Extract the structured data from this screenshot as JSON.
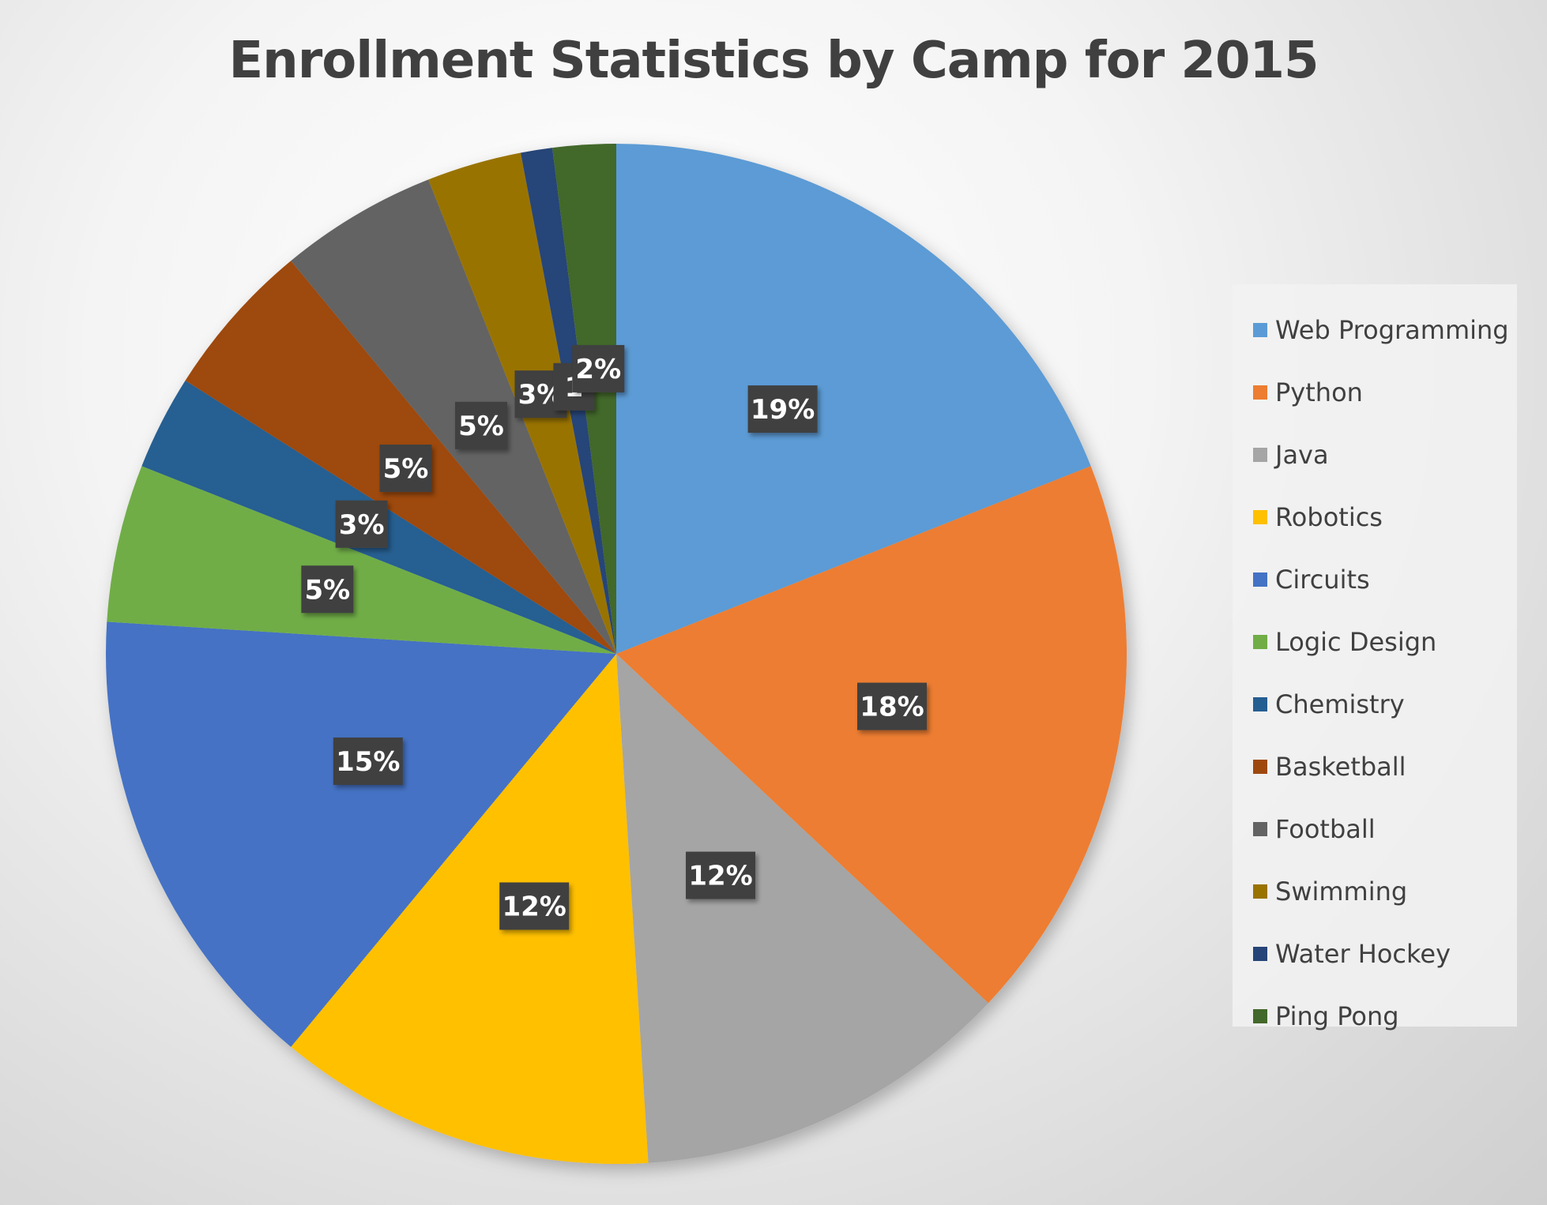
{
  "chart_data": {
    "type": "pie",
    "title": "Enrollment Statistics by Camp for 2015",
    "categories": [
      "Web Programming",
      "Python",
      "Java",
      "Robotics",
      "Circuits",
      "Logic Design",
      "Chemistry",
      "Basketball",
      "Football",
      "Swimming",
      "Water Hockey",
      "Ping Pong"
    ],
    "values": [
      19,
      18,
      12,
      12,
      15,
      5,
      3,
      5,
      5,
      3,
      1,
      2
    ],
    "labels": [
      "19%",
      "18%",
      "12%",
      "12%",
      "15%",
      "5%",
      "3%",
      "5%",
      "5%",
      "3%",
      "1",
      "2%"
    ],
    "colors": [
      "#5b9bd5",
      "#ed7d31",
      "#a5a5a5",
      "#ffc000",
      "#4472c4",
      "#70ad47",
      "#255e91",
      "#9e480e",
      "#636363",
      "#997300",
      "#264478",
      "#43682b"
    ],
    "legend_position": "right",
    "start_angle": "top, clockwise"
  }
}
